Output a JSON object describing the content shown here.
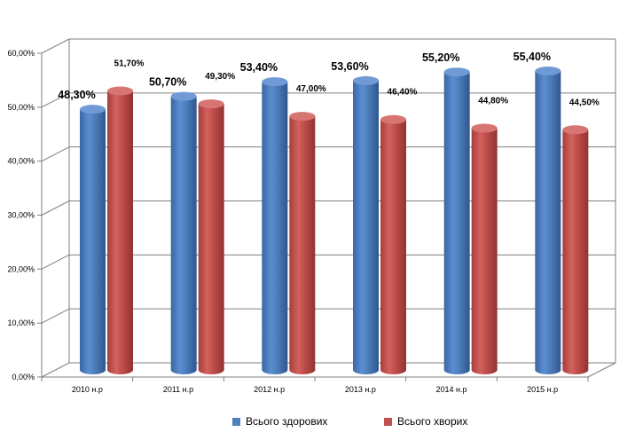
{
  "chart_data": {
    "type": "bar",
    "categories": [
      "2010 н.р",
      "2011 н.р",
      "2012 н.р",
      "2013 н.р",
      "2014 н.р",
      "2015 н.р"
    ],
    "series": [
      {
        "name": "Всього здорових",
        "color": "#4f81bd",
        "values": [
          48.3,
          50.7,
          53.4,
          53.6,
          55.2,
          55.4
        ],
        "labels": [
          "48,30%",
          "50,70%",
          "53,40%",
          "53,60%",
          "55,20%",
          "55,40%"
        ]
      },
      {
        "name": "Всього хворих",
        "color": "#c0504d",
        "values": [
          51.7,
          49.3,
          47.0,
          46.4,
          44.8,
          44.5
        ],
        "labels": [
          "51,70%",
          "49,30%",
          "47,00%",
          "46,40%",
          "44,80%",
          "44,50%"
        ]
      }
    ],
    "yticks": [
      "0,00%",
      "10,00%",
      "20,00%",
      "30,00%",
      "40,00%",
      "50,00%",
      "60,00%"
    ],
    "ylim": [
      0,
      60
    ],
    "grid": true,
    "legend_position": "bottom"
  }
}
